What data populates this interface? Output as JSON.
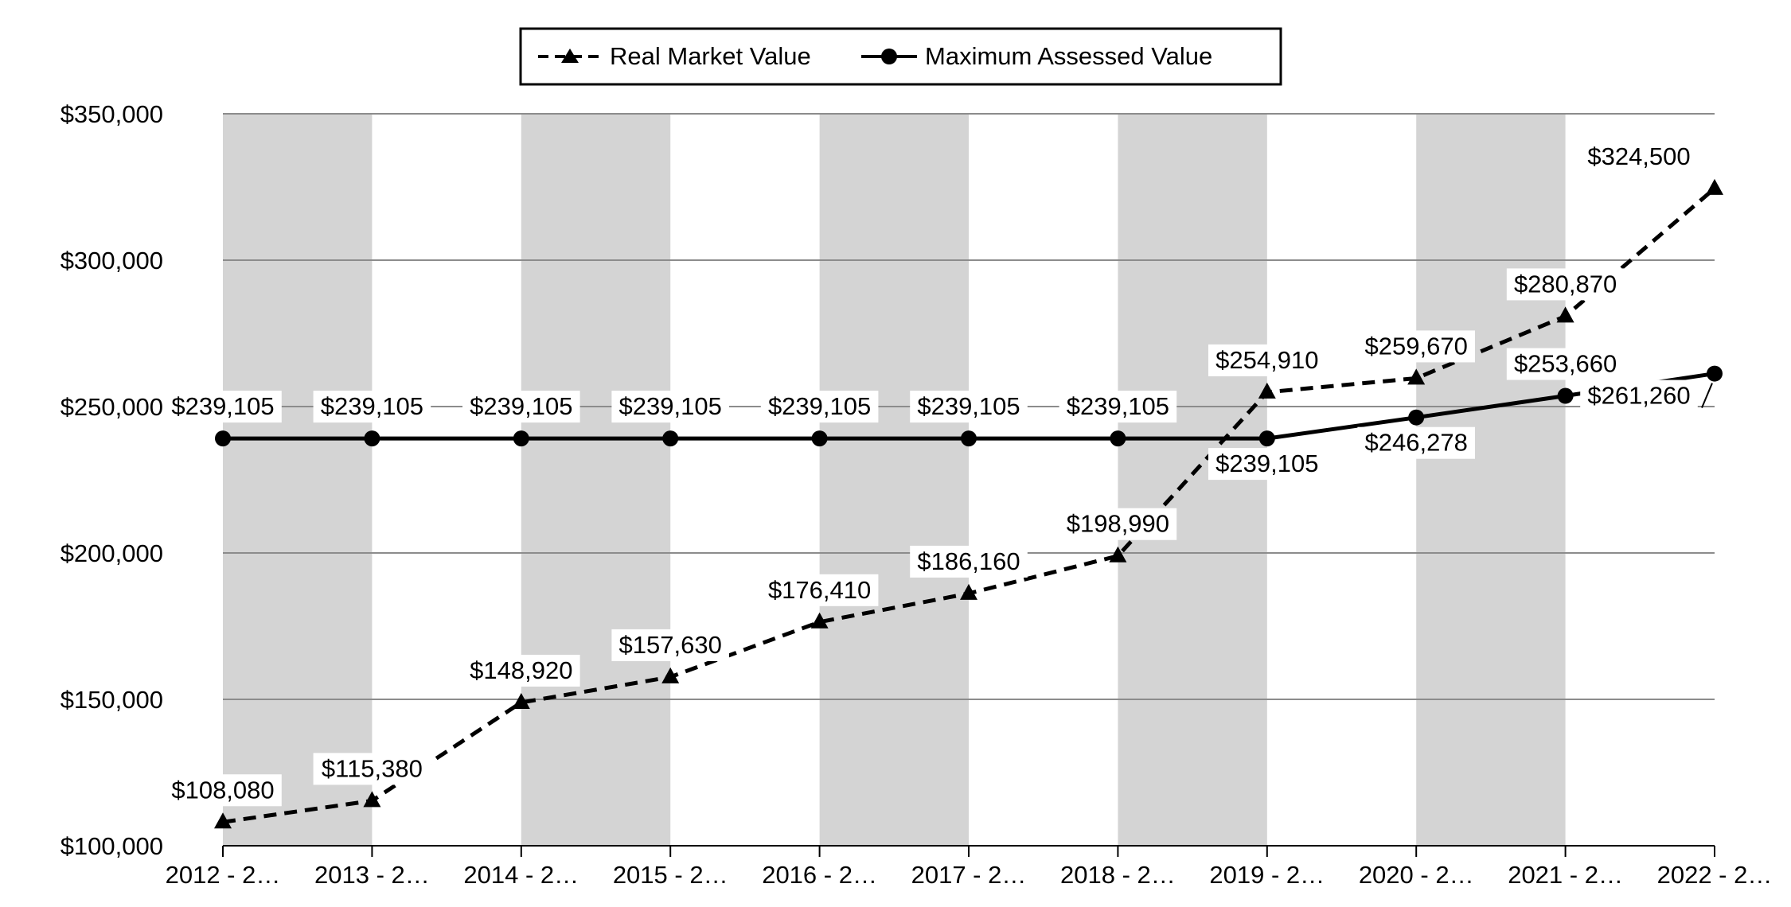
{
  "chart_data": {
    "type": "line",
    "title": "",
    "xlabel": "",
    "ylabel": "",
    "categories": [
      "2012 - 2…",
      "2013 - 2…",
      "2014 - 2…",
      "2015 - 2…",
      "2016 - 2…",
      "2017 - 2…",
      "2018 - 2…",
      "2019 - 2…",
      "2020 - 2…",
      "2021 - 2…",
      "2022 - 2…"
    ],
    "ylim": [
      100000,
      350000
    ],
    "yticks": [
      100000,
      150000,
      200000,
      250000,
      300000,
      350000
    ],
    "ytick_labels": [
      "$100,000",
      "$150,000",
      "$200,000",
      "$250,000",
      "$300,000",
      "$350,000"
    ],
    "grid": true,
    "legend_position": "top-center",
    "series": [
      {
        "name": "Real Market Value",
        "style": "dashed",
        "marker": "triangle",
        "values": [
          108080,
          115380,
          148920,
          157630,
          176410,
          186160,
          198990,
          254910,
          259670,
          280870,
          324500
        ],
        "labels": [
          "$108,080",
          "$115,380",
          "$148,920",
          "$157,630",
          "$176,410",
          "$186,160",
          "$198,990",
          "$254,910",
          "$259,670",
          "$280,870",
          "$324,500"
        ]
      },
      {
        "name": "Maximum Assessed Value",
        "style": "solid",
        "marker": "circle",
        "values": [
          239105,
          239105,
          239105,
          239105,
          239105,
          239105,
          239105,
          239105,
          246278,
          253660,
          261260
        ],
        "labels": [
          "$239,105",
          "$239,105",
          "$239,105",
          "$239,105",
          "$239,105",
          "$239,105",
          "$239,105",
          "$239,105",
          "$246,278",
          "$253,660",
          "$261,260"
        ]
      }
    ],
    "colors": {
      "line": "#000000",
      "band": "#d4d4d4",
      "grid": "#8c8c8c",
      "label_bg": "#ffffff"
    }
  }
}
